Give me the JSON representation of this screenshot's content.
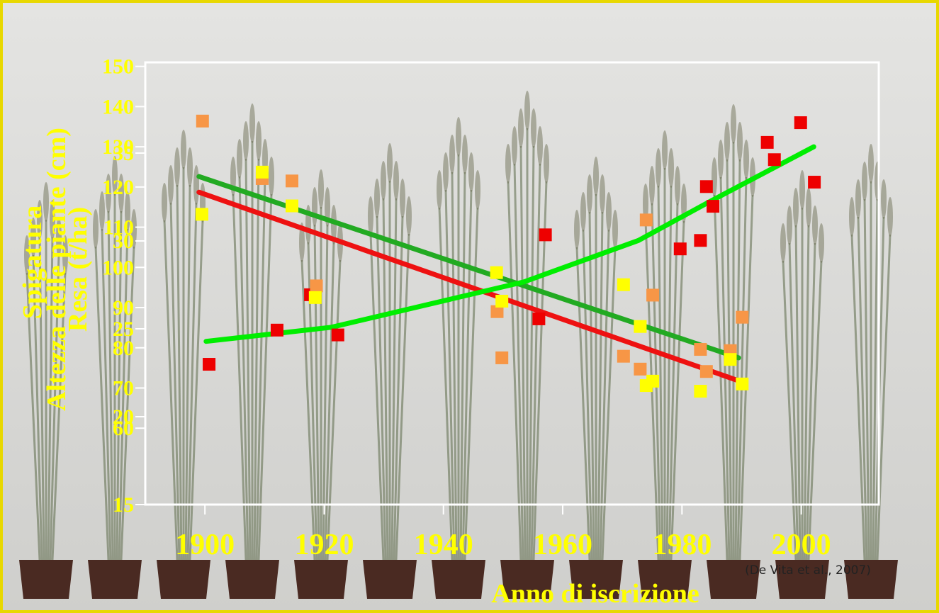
{
  "chart_data": {
    "type": "scatter",
    "x_label": "Anno di iscrizione",
    "y_labels": [
      "Spigatura",
      "Altezza delle piante (cm)",
      "Resa (t/ha)"
    ],
    "note": "(De Vita et al., 2007)",
    "xlim": [
      1890,
      2013
    ],
    "xticks": [
      1900,
      1920,
      1940,
      1960,
      1980,
      2000
    ],
    "ylim": [
      41,
      151
    ],
    "yticks": [
      60,
      70,
      80,
      90,
      100,
      110,
      120,
      130,
      140,
      150
    ],
    "y2lim": [
      15,
      40
    ],
    "y2ticks": [
      15,
      20,
      25,
      30,
      35
    ],
    "series": [
      {
        "color": "#ee0000",
        "x": [
          1900.7,
          1912.1,
          1917.7,
          1922.3,
          1956.0,
          1957.1,
          1979.7,
          1983.1,
          1984.1,
          1985.2,
          1994.3,
          1995.5,
          1999.9,
          2002.2
        ],
        "values": [
          75.9,
          84.4,
          93.2,
          83.2,
          87.2,
          108.1,
          104.6,
          106.7,
          120.1,
          115.2,
          131.1,
          126.8,
          136.0,
          121.2
        ]
      },
      {
        "color": "#f79646",
        "x": [
          1899.6,
          1909.6,
          1914.6,
          1918.7,
          1949.0,
          1949.8,
          1974.0,
          1975.1,
          1970.2,
          1973.0,
          1983.1,
          1984.1,
          1988.1,
          1990.1
        ],
        "values": [
          136.4,
          122.1,
          121.5,
          95.4,
          89.0,
          77.5,
          111.8,
          93.1,
          77.9,
          74.7,
          79.6,
          74.1,
          79.3,
          87.6
        ]
      },
      {
        "color": "#ffff00",
        "x": [
          1899.5,
          1909.6,
          1914.6,
          1918.5,
          1948.9,
          1949.8,
          1970.2,
          1973.0,
          1974.0,
          1975.1,
          1983.1,
          1988.1,
          1990.1
        ],
        "values": [
          113.2,
          123.7,
          115.3,
          92.5,
          98.7,
          91.6,
          95.7,
          85.3,
          70.6,
          71.7,
          69.2,
          77.1,
          71.0
        ]
      }
    ],
    "trend_lines": [
      {
        "color": "#22aa22",
        "x": [
          1899,
          1989.5
        ],
        "values": [
          122.6,
          77.5
        ]
      },
      {
        "color": "#ee1111",
        "x": [
          1899,
          1989.5
        ],
        "values": [
          118.7,
          71.8
        ]
      },
      {
        "color": "#00ee00",
        "x": [
          1900.2,
          1921.2,
          1953.5,
          1972.7,
          1984.7,
          2002.1
        ],
        "values": [
          81.6,
          85.1,
          96.4,
          106.7,
          116.4,
          130.0
        ]
      }
    ]
  }
}
